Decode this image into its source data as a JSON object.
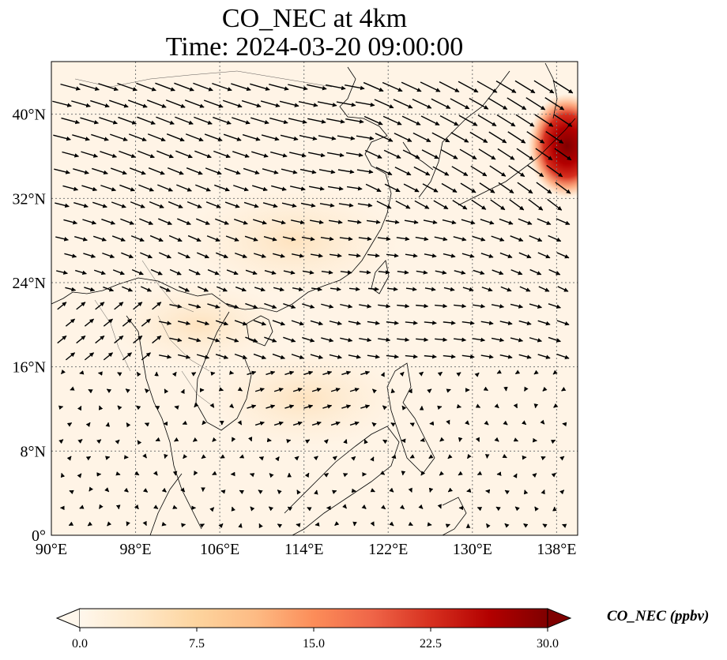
{
  "title_line1": "CO_NEC at 4km",
  "title_line2": "Time: 2024-03-20 09:00:00",
  "map": {
    "lon_range": [
      90,
      140
    ],
    "lat_range": [
      0,
      45
    ],
    "lon_ticks": [
      {
        "value": 90,
        "label": "90°E"
      },
      {
        "value": 98,
        "label": "98°E"
      },
      {
        "value": 106,
        "label": "106°E"
      },
      {
        "value": 114,
        "label": "114°E"
      },
      {
        "value": 122,
        "label": "122°E"
      },
      {
        "value": 130,
        "label": "130°E"
      },
      {
        "value": 138,
        "label": "138°E"
      }
    ],
    "lat_ticks": [
      {
        "value": 0,
        "label": "0°"
      },
      {
        "value": 8,
        "label": "8°N"
      },
      {
        "value": 16,
        "label": "16°N"
      },
      {
        "value": 24,
        "label": "24°N"
      },
      {
        "value": 32,
        "label": "32°N"
      },
      {
        "value": 40,
        "label": "40°N"
      }
    ],
    "gridlines": "dotted",
    "colormap": "OrRd",
    "hotspots": [
      {
        "lon": 139,
        "lat": 37,
        "value": 28
      },
      {
        "lon": 113,
        "lat": 28,
        "value": 4
      },
      {
        "lon": 114,
        "lat": 13,
        "value": 3
      },
      {
        "lon": 104,
        "lat": 20,
        "value": 2
      }
    ]
  },
  "colorbar": {
    "label": "CO_NEC (ppbv)",
    "min": 0,
    "max": 30,
    "extend": "both",
    "ticks": [
      "0.0",
      "7.5",
      "15.0",
      "22.5",
      "30.0"
    ],
    "colors": [
      "#fff7ec",
      "#fee8c8",
      "#fdd49e",
      "#fdbb84",
      "#fc8d59",
      "#ef6548",
      "#d7301f",
      "#b30000",
      "#7f0000"
    ]
  }
}
